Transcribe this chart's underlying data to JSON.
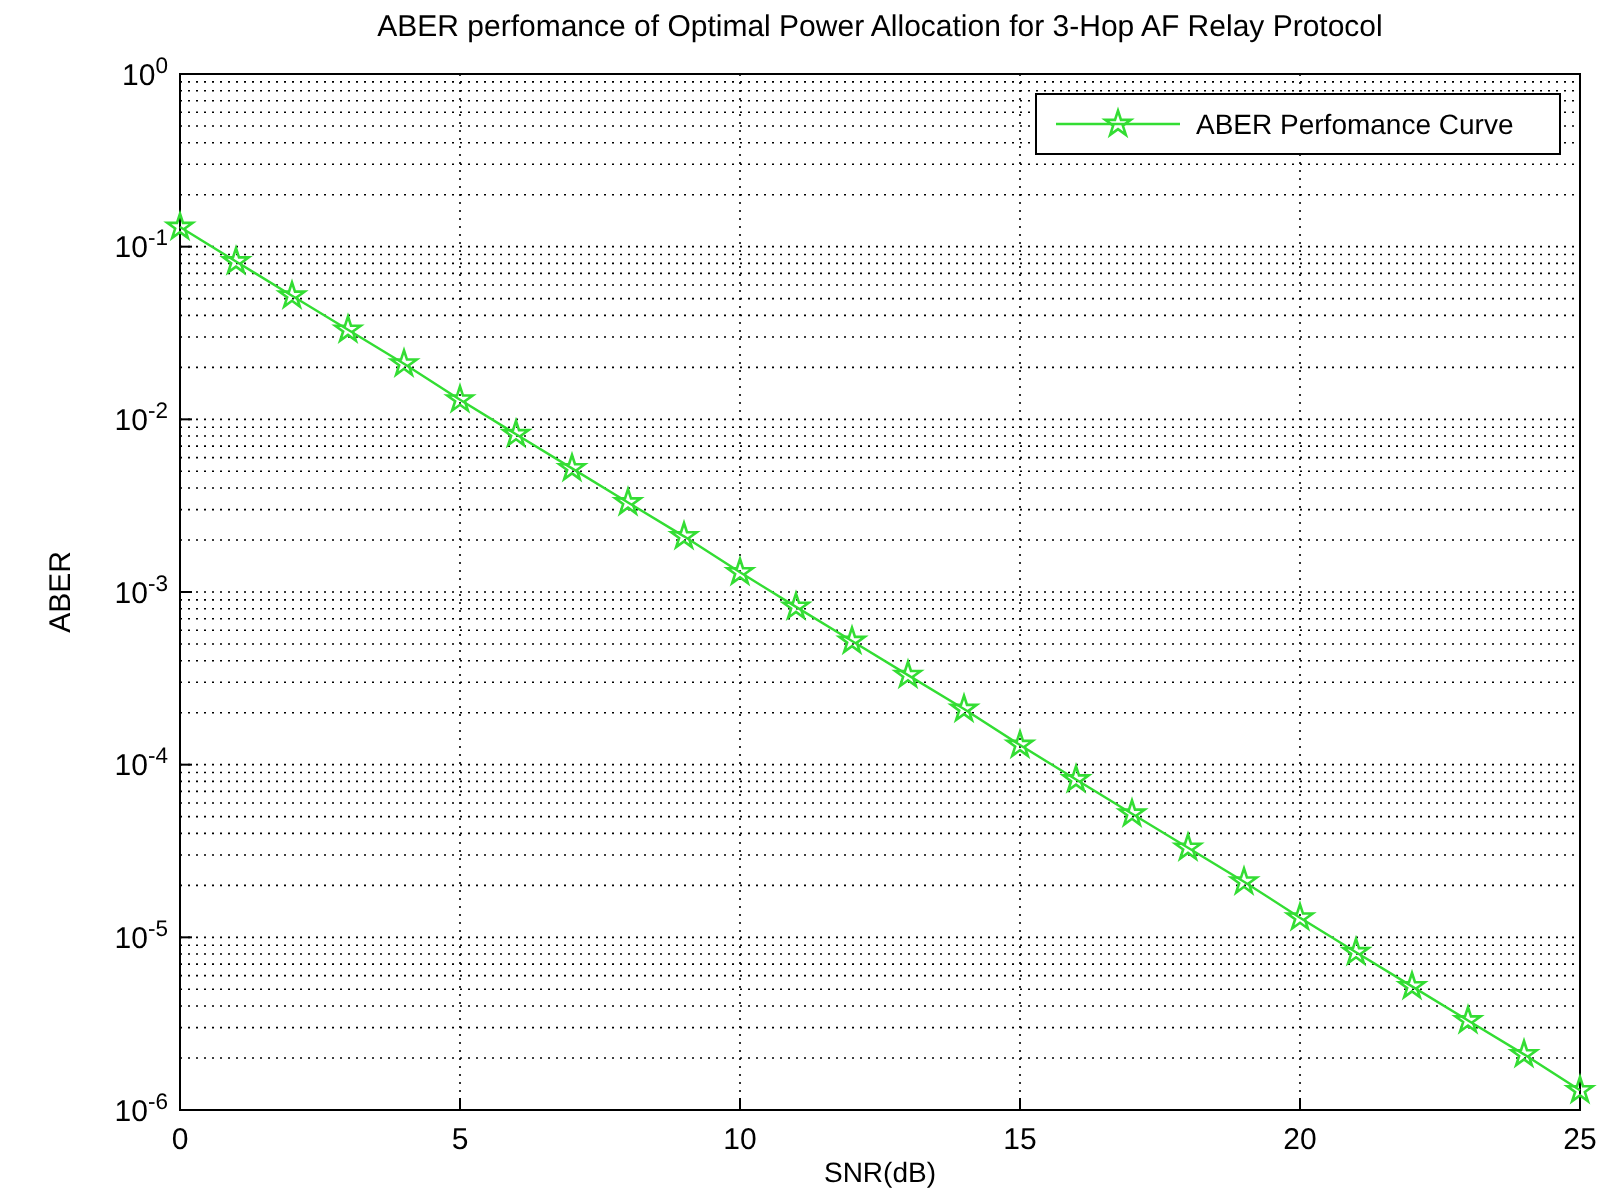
{
  "chart_data": {
    "type": "line",
    "title": "ABER perfomance of Optimal Power Allocation for 3-Hop AF Relay Protocol",
    "xlabel": "SNR(dB)",
    "ylabel": "ABER",
    "x": [
      0,
      1,
      2,
      3,
      4,
      5,
      6,
      7,
      8,
      9,
      10,
      11,
      12,
      13,
      14,
      15,
      16,
      17,
      18,
      19,
      20,
      21,
      22,
      23,
      24,
      25
    ],
    "series": [
      {
        "name": "ABER Perfomance Curve",
        "color": "#33dd33",
        "values": [
          0.13,
          0.082,
          0.052,
          0.033,
          0.021,
          0.013,
          0.0082,
          0.0052,
          0.0033,
          0.0021,
          0.0013,
          0.00082,
          0.00052,
          0.00033,
          0.00021,
          0.00013,
          8.2e-05,
          5.2e-05,
          3.3e-05,
          2.1e-05,
          1.3e-05,
          8.2e-06,
          5.2e-06,
          3.3e-06,
          2.1e-06,
          1.3e-06
        ]
      }
    ],
    "xlim": [
      0,
      25
    ],
    "xticks": [
      0,
      5,
      10,
      15,
      20,
      25
    ],
    "ylim": [
      1e-06,
      1
    ],
    "yticks": [
      {
        "value": 1,
        "label": "10$^{0}$"
      },
      {
        "value": 0.1,
        "label": "10$^{-1}$"
      },
      {
        "value": 0.01,
        "label": "10$^{-2}$"
      },
      {
        "value": 0.001,
        "label": "10$^{-3}$"
      },
      {
        "value": 0.0001,
        "label": "10$^{-4}$"
      },
      {
        "value": 1e-05,
        "label": "10$^{-5}$"
      },
      {
        "value": 1e-06,
        "label": "10$^{-6}$"
      }
    ],
    "log": "y",
    "grid": true,
    "legend": "top right",
    "marker": "star",
    "line_style": "solid"
  }
}
